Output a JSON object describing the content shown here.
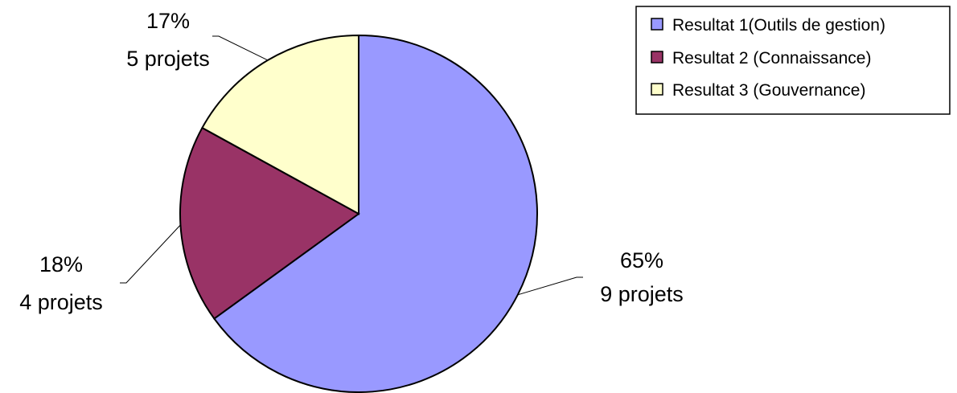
{
  "chart_data": {
    "type": "pie",
    "title": "",
    "legend_position": "top-right",
    "slices": [
      {
        "name": "Resultat 1(Outils de gestion)",
        "percent_label": "65%",
        "count_label": "9 projets",
        "value": 65,
        "color": "#9999ff"
      },
      {
        "name": "Resultat 2 (Connaissance)",
        "percent_label": "18%",
        "count_label": "4 projets",
        "value": 18,
        "color": "#993366"
      },
      {
        "name": "Resultat 3 (Gouvernance)",
        "percent_label": "17%",
        "count_label": "5 projets",
        "value": 17,
        "color": "#ffffcc"
      }
    ]
  }
}
